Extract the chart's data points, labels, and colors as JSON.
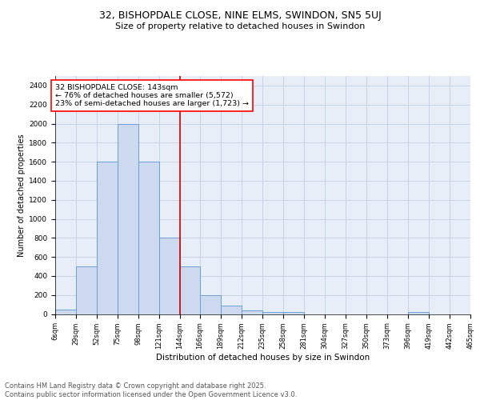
{
  "title": "32, BISHOPDALE CLOSE, NINE ELMS, SWINDON, SN5 5UJ",
  "subtitle": "Size of property relative to detached houses in Swindon",
  "xlabel": "Distribution of detached houses by size in Swindon",
  "ylabel": "Number of detached properties",
  "bar_color": "#ccd9ee",
  "bar_edge_color": "#6b9fd4",
  "grid_color": "#c8d4e8",
  "background_color": "#e8eef8",
  "bin_edges": [
    6,
    29,
    52,
    75,
    98,
    121,
    144,
    166,
    189,
    212,
    235,
    258,
    281,
    304,
    327,
    350,
    373,
    396,
    419,
    442,
    465
  ],
  "bar_heights": [
    50,
    500,
    1600,
    2000,
    1600,
    800,
    500,
    200,
    90,
    40,
    25,
    20,
    0,
    0,
    0,
    0,
    0,
    25,
    0,
    0
  ],
  "tick_labels": [
    "6sqm",
    "29sqm",
    "52sqm",
    "75sqm",
    "98sqm",
    "121sqm",
    "144sqm",
    "166sqm",
    "189sqm",
    "212sqm",
    "235sqm",
    "258sqm",
    "281sqm",
    "304sqm",
    "327sqm",
    "350sqm",
    "373sqm",
    "396sqm",
    "419sqm",
    "442sqm",
    "465sqm"
  ],
  "red_line_x": 144,
  "red_line_color": "#cc0000",
  "annotation_text": "32 BISHOPDALE CLOSE: 143sqm\n← 76% of detached houses are smaller (5,572)\n23% of semi-detached houses are larger (1,723) →",
  "ylim": [
    0,
    2500
  ],
  "yticks": [
    0,
    200,
    400,
    600,
    800,
    1000,
    1200,
    1400,
    1600,
    1800,
    2000,
    2200,
    2400
  ],
  "footer_text": "Contains HM Land Registry data © Crown copyright and database right 2025.\nContains public sector information licensed under the Open Government Licence v3.0.",
  "title_fontsize": 9,
  "subtitle_fontsize": 8,
  "annotation_fontsize": 6.8,
  "footer_fontsize": 6,
  "ylabel_fontsize": 7,
  "xlabel_fontsize": 7.5,
  "tick_fontsize": 6,
  "ytick_fontsize": 6.5
}
